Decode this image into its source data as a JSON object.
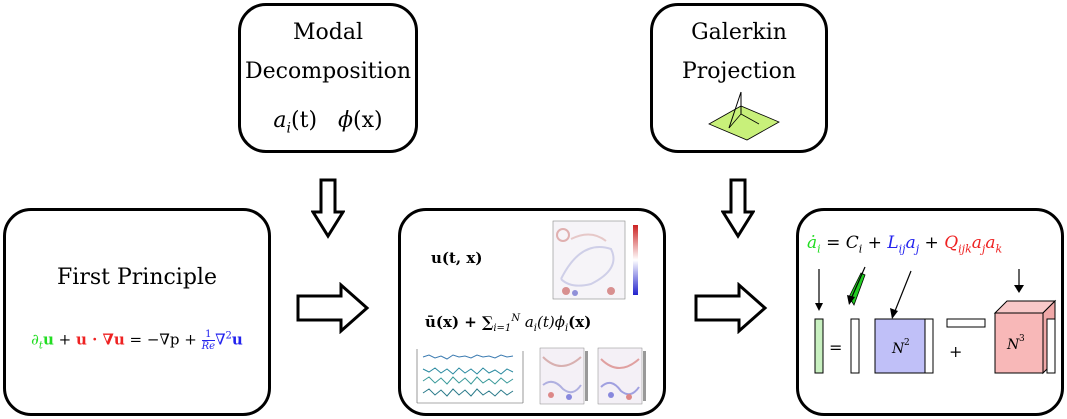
{
  "modal": {
    "title_line1": "Modal",
    "title_line2": "Decomposition",
    "symbol_a": "a",
    "symbol_a_sub": "i",
    "symbol_a_arg": "(t)",
    "symbol_phi": "ϕ",
    "symbol_phi_arg": "(x)"
  },
  "galerkin": {
    "title_line1": "Galerkin",
    "title_line2": "Projection"
  },
  "first_principle": {
    "title": "First Principle",
    "eq_dt": "∂",
    "eq_dt_sub": "t",
    "eq_u": "u",
    "eq_plus": " + ",
    "eq_udot": "u · ∇u",
    "eq_rhs": " = −∇p + ",
    "eq_frac_num": "1",
    "eq_frac_den": "Re",
    "eq_lap": "∇",
    "eq_lap_sup": "2",
    "eq_lap_u": "u"
  },
  "snapshot": {
    "field_label": "u(t, x)",
    "expansion_label": "ū(x) + ∑",
    "sum_lower": "i=1",
    "sum_upper": "N",
    "expansion_tail": "a",
    "expansion_tail_sub": "i",
    "expansion_tail2": "(t)ϕ",
    "expansion_tail2_sub": "i",
    "expansion_tail3": "(x)"
  },
  "rom": {
    "eq_adot": "ȧ",
    "eq_adot_sub": "i",
    "eq_eq": " = ",
    "eq_C": "C",
    "eq_C_sub": "i",
    "eq_plus1": " + ",
    "eq_L": "L",
    "eq_L_sub": "ij",
    "eq_aj": "a",
    "eq_aj_sub": "j",
    "eq_plus2": " + ",
    "eq_Q": "Q",
    "eq_Q_sub": "ijk",
    "eq_aj2": "a",
    "eq_aj2_sub": "j",
    "eq_ak": "a",
    "eq_ak_sub": "k",
    "op_equals": "=",
    "op_plus": "+",
    "n2_label": "N",
    "n2_sup": "2",
    "n3_label": "N",
    "n3_sup": "3"
  },
  "colors": {
    "green": "#22dd22",
    "red": "#ee2222",
    "blue": "#2222ee",
    "green_fill": "#c8f0c0",
    "blue_fill": "#c0c0f8",
    "red_fill": "#f8b8b8",
    "plane_fill": "#c8f07a"
  }
}
